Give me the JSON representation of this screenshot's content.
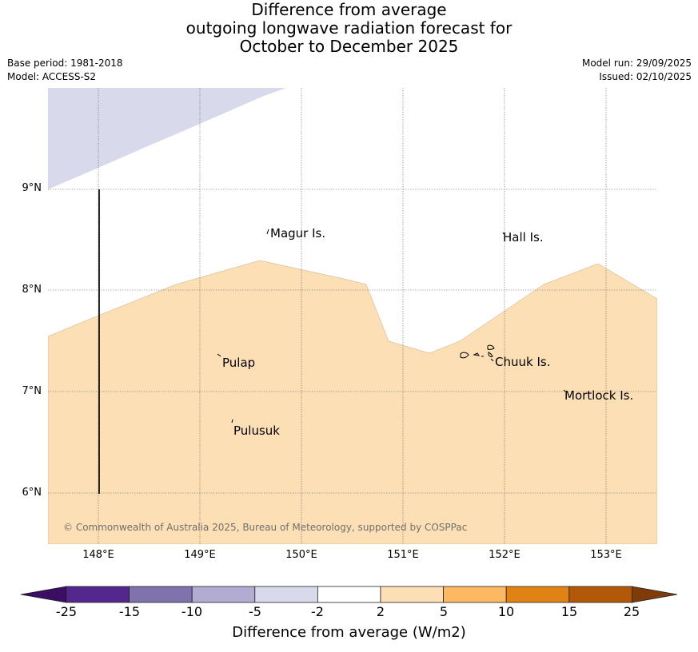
{
  "title": {
    "line1": "Difference from average",
    "line2": "outgoing longwave radiation forecast for",
    "line3": "October to December 2025"
  },
  "meta": {
    "base_period": "Base period: 1981-2018",
    "model": "Model: ACCESS-S2",
    "model_run": "Model run: 29/09/2025",
    "issued": "Issued: 02/10/2025"
  },
  "map": {
    "lat_labels": [
      "9°N",
      "8°N",
      "7°N",
      "6°N"
    ],
    "lon_labels": [
      "148°E",
      "149°E",
      "150°E",
      "151°E",
      "152°E",
      "153°E"
    ],
    "places": [
      "Magur Is.",
      "Hall Is.",
      "Pulap",
      "Chuuk Is.",
      "Mortlock Is.",
      "Pulusuk"
    ],
    "copyright": "© Commonwealth of Australia 2025, Bureau of Meteorology, supported by COSPPac"
  },
  "legend": {
    "title": "Difference from average (W/m2)",
    "ticks": [
      "-25",
      "-15",
      "-10",
      "-5",
      "-2",
      "2",
      "5",
      "10",
      "15",
      "25"
    ],
    "colors": {
      "below_-25": "#3a0e63",
      "-25_to_-15": "#54278f",
      "-15_to_-10": "#8073ac",
      "-10_to_-5": "#b2abd2",
      "-5_to_-2": "#d8daeb",
      "-2_to_2": "#ffffff",
      "2_to_5": "#fddfb5",
      "5_to_10": "#fdb863",
      "10_to_15": "#e08214",
      "15_to_25": "#b35806",
      "above_25": "#7f3b08"
    }
  }
}
